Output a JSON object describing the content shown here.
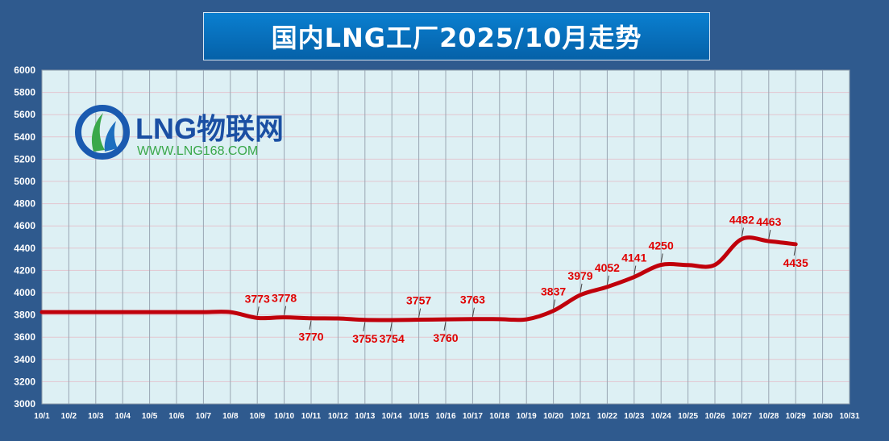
{
  "title": "国内LNG工厂2025/10月走势",
  "logo": {
    "name": "LNG物联网",
    "url": "WWW.LNG168.COM"
  },
  "colors": {
    "line": "#c0000b",
    "label": "#e00000",
    "plot_bg": "#ddf0f4",
    "grid_v": "#9aa7b3",
    "grid_h": "#e3c6cf",
    "page_bg": "#2f5a8e"
  },
  "chart_data": {
    "type": "line",
    "title": "国内LNG工厂2025/10月走势",
    "xlabel": "",
    "ylabel": "",
    "ylim": [
      3000,
      6000
    ],
    "yticks": [
      3000,
      3200,
      3400,
      3600,
      3800,
      4000,
      4200,
      4400,
      4600,
      4800,
      5000,
      5200,
      5400,
      5600,
      5800,
      6000
    ],
    "categories": [
      "10/1",
      "10/2",
      "10/3",
      "10/4",
      "10/5",
      "10/6",
      "10/7",
      "10/8",
      "10/9",
      "10/10",
      "10/11",
      "10/12",
      "10/13",
      "10/14",
      "10/15",
      "10/16",
      "10/17",
      "10/18",
      "10/19",
      "10/20",
      "10/21",
      "10/22",
      "10/23",
      "10/24",
      "10/25",
      "10/26",
      "10/27",
      "10/28",
      "10/29",
      "10/30",
      "10/31"
    ],
    "grid": true,
    "legend": "none",
    "series": [
      {
        "values": [
          3825,
          3825,
          3825,
          3825,
          3825,
          3825,
          3825,
          3825,
          3773,
          3778,
          3770,
          3768,
          3755,
          3754,
          3757,
          3760,
          3763,
          3762,
          3760,
          3837,
          3979,
          4052,
          4141,
          4250,
          4248,
          4250,
          4482,
          4463,
          4435,
          null,
          null
        ]
      }
    ],
    "annotations": [
      {
        "x": "10/9",
        "label": "3773",
        "pos": "above"
      },
      {
        "x": "10/10",
        "label": "3778",
        "pos": "above"
      },
      {
        "x": "10/11",
        "label": "3770",
        "pos": "below"
      },
      {
        "x": "10/13",
        "label": "3755",
        "pos": "below"
      },
      {
        "x": "10/14",
        "label": "3754",
        "pos": "below"
      },
      {
        "x": "10/15",
        "label": "3757",
        "pos": "above"
      },
      {
        "x": "10/16",
        "label": "3760",
        "pos": "below"
      },
      {
        "x": "10/17",
        "label": "3763",
        "pos": "above"
      },
      {
        "x": "10/20",
        "label": "3837",
        "pos": "above"
      },
      {
        "x": "10/21",
        "label": "3979",
        "pos": "above"
      },
      {
        "x": "10/22",
        "label": "4052",
        "pos": "above"
      },
      {
        "x": "10/23",
        "label": "4141",
        "pos": "above"
      },
      {
        "x": "10/24",
        "label": "4250",
        "pos": "above"
      },
      {
        "x": "10/27",
        "label": "4482",
        "pos": "above"
      },
      {
        "x": "10/28",
        "label": "4463",
        "pos": "above"
      },
      {
        "x": "10/29",
        "label": "4435",
        "pos": "below"
      }
    ]
  }
}
